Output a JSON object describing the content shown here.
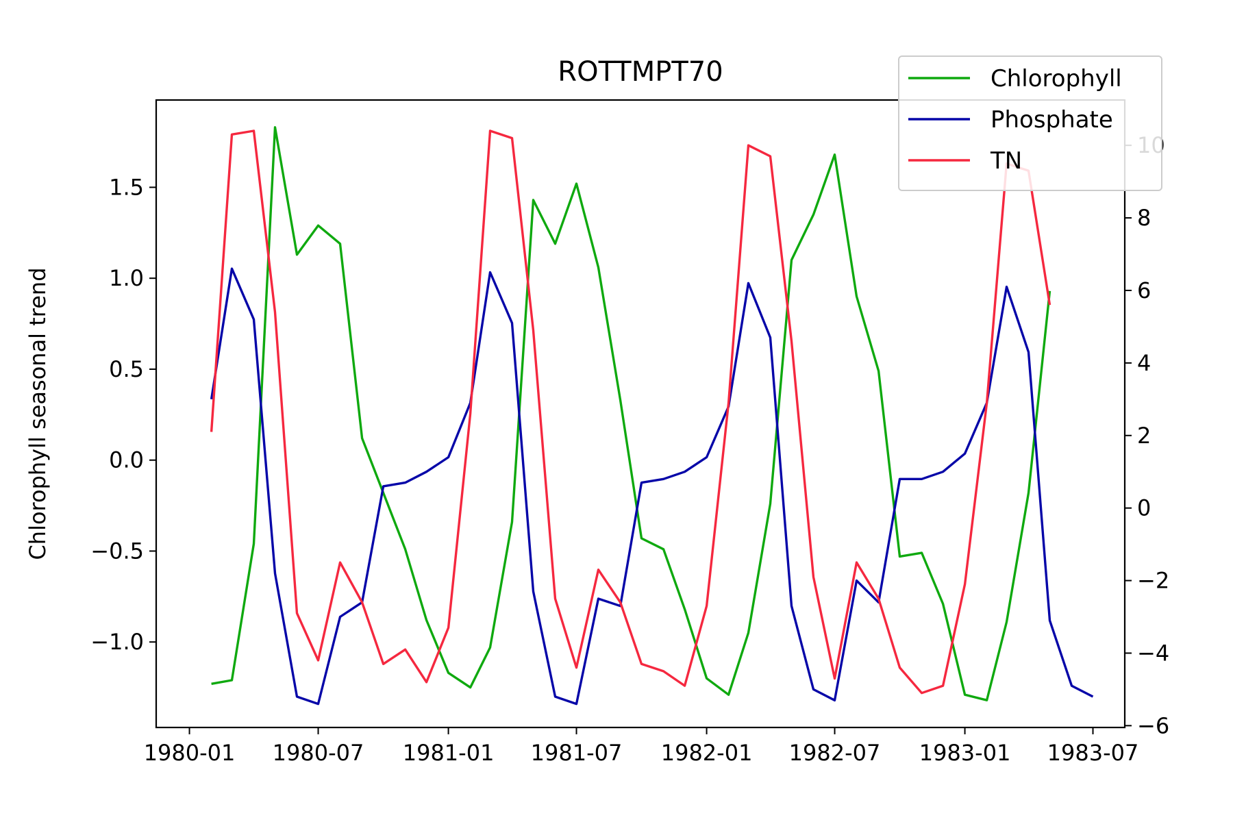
{
  "chart_data": {
    "type": "line",
    "title": "ROTTMPT70",
    "xlabel": "",
    "ylabel": "Chlorophyll seasonal trend",
    "ylabel_right": "",
    "x_ticks": [
      "1980-01",
      "1980-07",
      "1981-01",
      "1981-07",
      "1982-01",
      "1982-07",
      "1983-01",
      "1983-07"
    ],
    "y_ticks_left": [
      "−1.0",
      "−0.5",
      "0.0",
      "0.5",
      "1.0",
      "1.5"
    ],
    "y_ticks_right": [
      "−6",
      "−4",
      "−2",
      "0",
      "2",
      "4",
      "6",
      "8",
      "10"
    ],
    "ylim_left": [
      -1.47,
      1.98
    ],
    "ylim_right": [
      -6.05,
      11.25
    ],
    "xlim": [
      "1979-11-15",
      "1983-08-15"
    ],
    "grid": false,
    "legend_position": "top-right",
    "x": [
      "1980-02",
      "1980-03",
      "1980-04",
      "1980-05",
      "1980-06",
      "1980-07",
      "1980-08",
      "1980-09",
      "1980-10",
      "1980-11",
      "1980-12",
      "1981-01",
      "1981-02",
      "1981-03",
      "1981-04",
      "1981-05",
      "1981-06",
      "1981-07",
      "1981-08",
      "1981-09",
      "1981-10",
      "1981-11",
      "1981-12",
      "1982-01",
      "1982-02",
      "1982-03",
      "1982-04",
      "1982-05",
      "1982-06",
      "1982-07",
      "1982-08",
      "1982-09",
      "1982-10",
      "1982-11",
      "1982-12",
      "1983-01",
      "1983-02",
      "1983-03",
      "1983-04",
      "1983-05",
      "1983-06",
      "1983-07"
    ],
    "series": [
      {
        "name": "Chlorophyll",
        "axis": "left",
        "color": "#0fa90f",
        "values": [
          -1.23,
          -1.21,
          -0.46,
          1.83,
          1.13,
          1.29,
          1.19,
          0.12,
          -0.18,
          -0.49,
          -0.88,
          -1.17,
          -1.25,
          -1.03,
          -0.34,
          1.43,
          1.19,
          1.52,
          1.06,
          0.33,
          -0.43,
          -0.49,
          -0.82,
          -1.2,
          -1.29,
          -0.95,
          -0.24,
          1.1,
          1.35,
          1.68,
          0.9,
          0.49,
          -0.53,
          -0.51,
          -0.79,
          -1.29,
          -1.32,
          -0.89,
          -0.18,
          0.93,
          null,
          null
        ]
      },
      {
        "name": "Phosphate",
        "axis": "right",
        "color": "#0606a8",
        "values": [
          3.0,
          6.6,
          5.2,
          -1.8,
          -5.2,
          -5.4,
          -3.0,
          -2.6,
          0.6,
          0.7,
          1.0,
          1.4,
          2.9,
          6.5,
          5.1,
          -2.3,
          -5.2,
          -5.4,
          -2.5,
          -2.7,
          0.7,
          0.8,
          1.0,
          1.4,
          2.8,
          6.2,
          4.7,
          -2.7,
          -5.0,
          -5.3,
          -2.0,
          -2.6,
          0.8,
          0.8,
          1.0,
          1.5,
          2.9,
          6.1,
          4.3,
          -3.1,
          -4.9,
          -5.2
        ]
      },
      {
        "name": "TN",
        "axis": "right",
        "color": "#f5283f",
        "values": [
          2.1,
          10.3,
          10.4,
          5.4,
          -2.9,
          -4.2,
          -1.5,
          -2.6,
          -4.3,
          -3.9,
          -4.8,
          -3.3,
          2.6,
          10.4,
          10.2,
          4.9,
          -2.5,
          -4.4,
          -1.7,
          -2.6,
          -4.3,
          -4.5,
          -4.9,
          -2.7,
          2.9,
          10.0,
          9.7,
          4.6,
          -1.9,
          -4.7,
          -1.5,
          -2.5,
          -4.4,
          -5.1,
          -4.9,
          -2.1,
          2.9,
          9.5,
          9.3,
          5.6,
          null,
          null
        ]
      }
    ]
  }
}
